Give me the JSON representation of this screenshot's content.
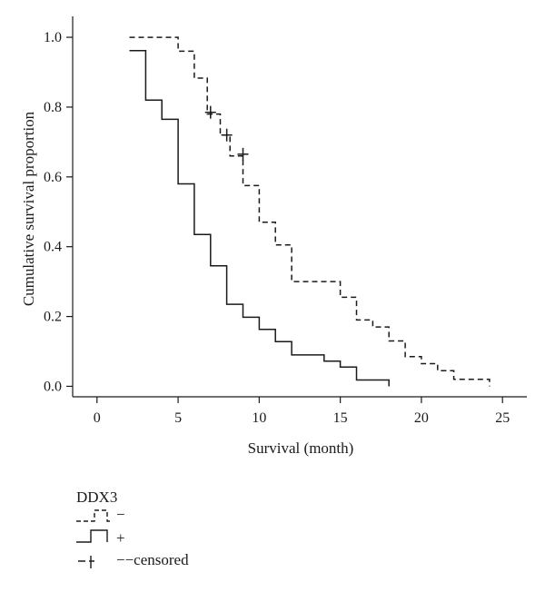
{
  "chart_data": {
    "type": "line",
    "step": true,
    "xlabel": "Survival (month)",
    "ylabel": "Cumulative survival proportion",
    "xlim": [
      -1.5,
      26.5
    ],
    "ylim": [
      -0.03,
      1.06
    ],
    "xticks": [
      0,
      5,
      10,
      15,
      20,
      25
    ],
    "yticks": [
      0.0,
      0.2,
      0.4,
      0.6,
      0.8,
      1.0
    ],
    "ytick_labels": [
      "0.0",
      "0.2",
      "0.4",
      "0.6",
      "0.8",
      "1.0"
    ],
    "grid": false,
    "legend": {
      "title": "DDX3",
      "position": "bottom-left",
      "entries": [
        {
          "label": "−",
          "style": "dashed-step"
        },
        {
          "label": "+",
          "style": "solid-step"
        },
        {
          "label": "−−censored",
          "style": "dashed-censor"
        }
      ]
    },
    "series": [
      {
        "name": "−",
        "style": "dashed",
        "color": "#1a1a1a",
        "x": [
          2,
          5,
          5.5,
          6,
          6.8,
          7,
          7.6,
          8.2,
          9,
          10,
          11,
          12,
          13,
          15,
          16,
          17,
          18,
          19,
          20,
          21,
          22,
          23,
          24.2
        ],
        "y": [
          1.0,
          0.96,
          0.96,
          0.883,
          0.78,
          0.78,
          0.72,
          0.66,
          0.575,
          0.47,
          0.405,
          0.3,
          0.3,
          0.255,
          0.19,
          0.17,
          0.13,
          0.085,
          0.065,
          0.045,
          0.02,
          0.02,
          0.0
        ],
        "censored": [
          [
            7,
            0.785
          ],
          [
            8,
            0.72
          ],
          [
            9,
            0.665
          ]
        ]
      },
      {
        "name": "+",
        "style": "solid",
        "color": "#1a1a1a",
        "x": [
          2,
          3,
          4,
          5,
          6,
          7,
          8,
          9,
          10,
          11,
          12,
          14,
          15,
          16,
          18
        ],
        "y": [
          0.962,
          0.82,
          0.765,
          0.58,
          0.435,
          0.345,
          0.235,
          0.198,
          0.163,
          0.128,
          0.09,
          0.072,
          0.055,
          0.018,
          0.0
        ]
      }
    ]
  }
}
